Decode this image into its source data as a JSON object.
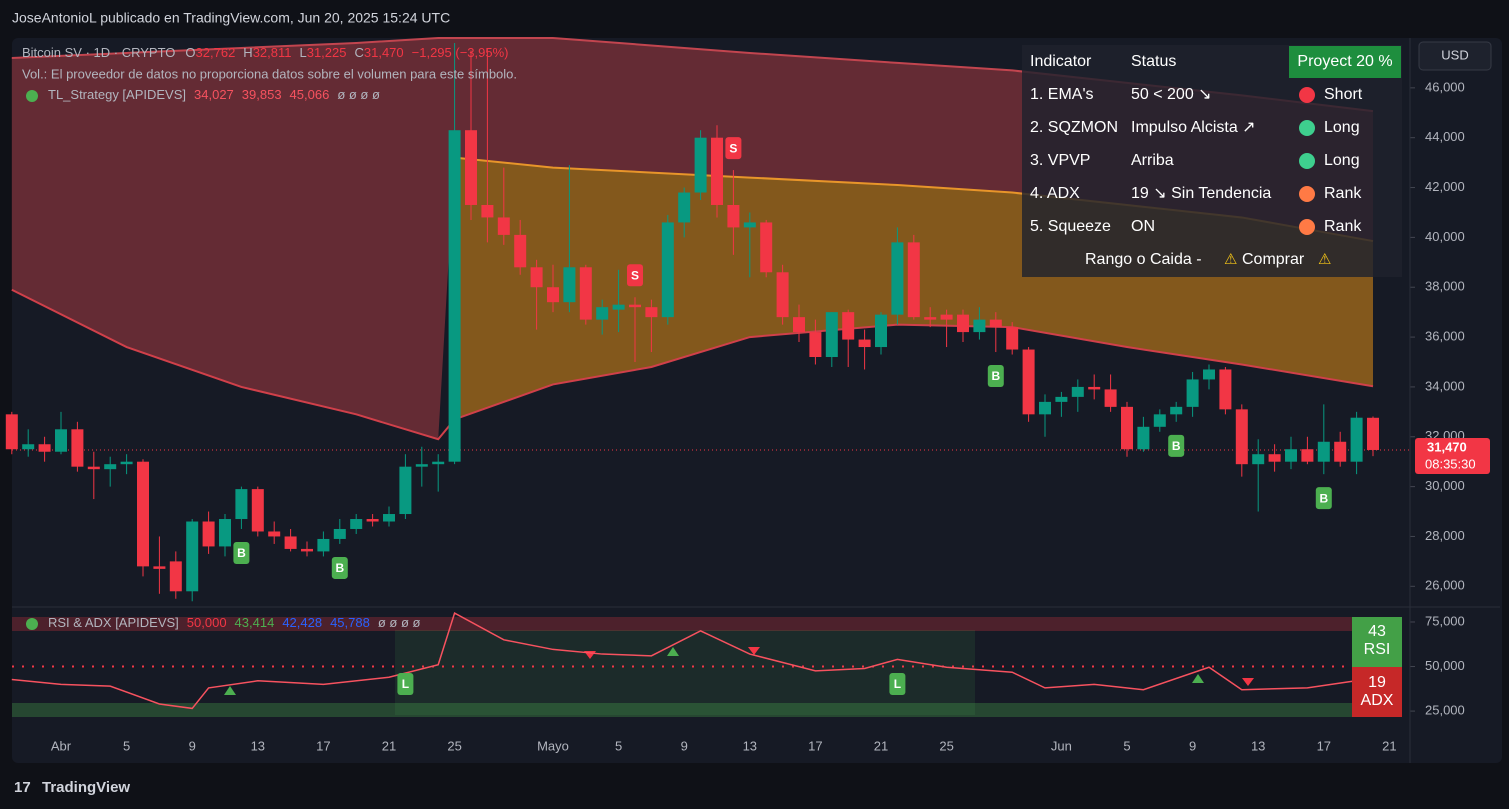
{
  "header": {
    "text": "JoseAntonioL publicado en TradingView.com, Jun 20, 2025 15:24 UTC"
  },
  "chart_data": {
    "type": "candlestick",
    "legend": {
      "symbol": "Bitcoin SV · 1D · CRYPTO",
      "ohlc": [
        [
          "O",
          "32,762"
        ],
        [
          "H",
          "32,811"
        ],
        [
          "L",
          "31,225"
        ],
        [
          "C",
          "31,470"
        ]
      ],
      "change": "−1,295 (−3,95%)",
      "volume_note": "Vol.: El proveedor de datos no proporciona datos sobre el volumen para este símbolo.",
      "indicator": "TL_Strategy [APIDEVS]",
      "indicator_values": [
        "34,027",
        "39,853",
        "45,066"
      ],
      "indicator_tail": "ø ø ø ø"
    },
    "currency": "USD",
    "x": [
      "03-29",
      "03-30",
      "03-31",
      "04-01",
      "04-02",
      "04-03",
      "04-04",
      "04-05",
      "04-06",
      "04-07",
      "04-08",
      "04-09",
      "04-10",
      "04-11",
      "04-12",
      "04-13",
      "04-14",
      "04-15",
      "04-16",
      "04-17",
      "04-18",
      "04-19",
      "04-20",
      "04-21",
      "04-22",
      "04-23",
      "04-24",
      "04-25",
      "04-26",
      "04-27",
      "04-28",
      "04-29",
      "04-30",
      "05-01",
      "05-02",
      "05-03",
      "05-04",
      "05-05",
      "05-06",
      "05-07",
      "05-08",
      "05-09",
      "05-10",
      "05-11",
      "05-12",
      "05-13",
      "05-14",
      "05-15",
      "05-16",
      "05-17",
      "05-18",
      "05-19",
      "05-20",
      "05-21",
      "05-22",
      "05-23",
      "05-24",
      "05-25",
      "05-26",
      "05-27",
      "05-28",
      "05-29",
      "05-30",
      "05-31",
      "06-01",
      "06-02",
      "06-03",
      "06-04",
      "06-05",
      "06-06",
      "06-07",
      "06-08",
      "06-09",
      "06-10",
      "06-11",
      "06-12",
      "06-13",
      "06-14",
      "06-15",
      "06-16",
      "06-17",
      "06-18",
      "06-19",
      "06-20"
    ],
    "open": [
      32900,
      31500,
      31700,
      31400,
      32300,
      30800,
      30700,
      30900,
      31000,
      26800,
      27000,
      25800,
      28600,
      27600,
      28700,
      29900,
      28200,
      28000,
      27500,
      27400,
      27900,
      28300,
      28700,
      28600,
      28900,
      30800,
      30900,
      31000,
      44300,
      41300,
      40800,
      40100,
      38800,
      38000,
      37400,
      38800,
      36700,
      37100,
      37300,
      37200,
      36800,
      40600,
      41800,
      44000,
      41300,
      40400,
      40600,
      38600,
      36800,
      36200,
      35200,
      37000,
      35900,
      35600,
      36900,
      39800,
      36800,
      36900,
      36900,
      36200,
      36700,
      36400,
      35500,
      32900,
      33400,
      33600,
      34000,
      33900,
      33200,
      31500,
      32400,
      32900,
      33200,
      34300,
      34700,
      33100,
      30900,
      31300,
      31000,
      31500,
      31000,
      31800,
      31000,
      32762
    ],
    "high": [
      33000,
      32300,
      32000,
      33000,
      32600,
      31400,
      31200,
      31300,
      31100,
      28000,
      27400,
      28700,
      29000,
      28900,
      30000,
      30000,
      28600,
      28300,
      27800,
      28200,
      28700,
      28900,
      28900,
      29200,
      31300,
      31600,
      31300,
      47800,
      47500,
      47600,
      42800,
      40700,
      39100,
      38900,
      42900,
      38900,
      37500,
      38700,
      37600,
      37500,
      40900,
      42000,
      44300,
      44500,
      42700,
      41000,
      40700,
      38900,
      37300,
      36700,
      37000,
      37100,
      36300,
      37000,
      40400,
      40100,
      37200,
      37100,
      37100,
      37200,
      37000,
      36600,
      35600,
      33700,
      33800,
      34300,
      34500,
      34500,
      33400,
      32800,
      33100,
      33400,
      34600,
      34900,
      34800,
      33300,
      31900,
      31700,
      32000,
      32000,
      33300,
      32200,
      33000,
      32811
    ],
    "low": [
      31300,
      31200,
      31000,
      31300,
      30600,
      29500,
      30000,
      30500,
      26400,
      25700,
      25500,
      25400,
      27300,
      27200,
      28300,
      28000,
      27700,
      27400,
      27200,
      27200,
      27700,
      28100,
      28400,
      28400,
      28700,
      30000,
      29800,
      30900,
      40700,
      39800,
      39700,
      38500,
      36300,
      37000,
      37000,
      36500,
      36100,
      36200,
      35000,
      35400,
      36500,
      40000,
      41500,
      40800,
      39300,
      38400,
      38400,
      36500,
      35800,
      34900,
      34800,
      34800,
      34700,
      35300,
      36500,
      36700,
      36400,
      35600,
      35800,
      35900,
      35400,
      35300,
      32600,
      32000,
      32800,
      33000,
      33500,
      33000,
      31200,
      31400,
      32200,
      32600,
      32800,
      33900,
      32900,
      30400,
      29000,
      30600,
      30700,
      30900,
      30500,
      30800,
      30500,
      31225
    ],
    "close": [
      31500,
      31700,
      31400,
      32300,
      30800,
      30700,
      30900,
      31000,
      26800,
      26700,
      25800,
      28600,
      27600,
      28700,
      29900,
      28200,
      28000,
      27500,
      27400,
      27900,
      28300,
      28700,
      28600,
      28900,
      30800,
      30900,
      31000,
      44300,
      41300,
      40800,
      40100,
      38800,
      38000,
      37400,
      38800,
      36700,
      37200,
      37300,
      37200,
      36800,
      40600,
      41800,
      44000,
      41300,
      40400,
      40600,
      38600,
      36800,
      36200,
      35200,
      37000,
      35900,
      35600,
      36900,
      39800,
      36800,
      36700,
      36700,
      36200,
      36700,
      36400,
      35500,
      32900,
      33400,
      33600,
      34000,
      33900,
      33200,
      31500,
      32400,
      32900,
      33200,
      34300,
      34700,
      33100,
      30900,
      31300,
      31000,
      31500,
      31000,
      31800,
      31000,
      32765,
      31470
    ],
    "up_color": "#089981",
    "down_color": "#f23645",
    "ylim": [
      25250,
      48000
    ],
    "yticks": [
      {
        "value": 26000,
        "label": "26,000"
      },
      {
        "value": 28000,
        "label": "28,000"
      },
      {
        "value": 30000,
        "label": "30,000"
      },
      {
        "value": 32000,
        "label": "32,000"
      },
      {
        "value": 34000,
        "label": "34,000"
      },
      {
        "value": 36000,
        "label": "36,000"
      },
      {
        "value": 38000,
        "label": "38,000"
      },
      {
        "value": 40000,
        "label": "40,000"
      },
      {
        "value": 42000,
        "label": "42,000"
      },
      {
        "value": 44000,
        "label": "44,000"
      },
      {
        "value": 46000,
        "label": "46,000"
      }
    ],
    "xticks": [
      {
        "value": "04-01",
        "label": "Abr"
      },
      {
        "value": "04-05",
        "label": "5"
      },
      {
        "value": "04-09",
        "label": "9"
      },
      {
        "value": "04-13",
        "label": "13"
      },
      {
        "value": "04-17",
        "label": "17"
      },
      {
        "value": "04-21",
        "label": "21"
      },
      {
        "value": "04-25",
        "label": "25"
      },
      {
        "value": "05-01",
        "label": "Mayo"
      },
      {
        "value": "05-05",
        "label": "5"
      },
      {
        "value": "05-09",
        "label": "9"
      },
      {
        "value": "05-13",
        "label": "13"
      },
      {
        "value": "05-17",
        "label": "17"
      },
      {
        "value": "05-21",
        "label": "21"
      },
      {
        "value": "05-25",
        "label": "25"
      },
      {
        "value": "06-01",
        "label": "Jun"
      },
      {
        "value": "06-05",
        "label": "5"
      },
      {
        "value": "06-09",
        "label": "9"
      },
      {
        "value": "06-13",
        "label": "13"
      },
      {
        "value": "06-17",
        "label": "17"
      },
      {
        "value": "06-21",
        "label": "21"
      }
    ],
    "price_tag": {
      "label": "31,470",
      "timer": "08:35:30"
    },
    "bands": {
      "x": [
        "03-29",
        "04-05",
        "04-12",
        "04-19",
        "04-24",
        "04-25",
        "05-01",
        "05-07",
        "05-13",
        "05-22",
        "05-29",
        "06-05",
        "06-12",
        "06-20"
      ],
      "upper": [
        47200,
        47400,
        47600,
        47800,
        48000,
        48000,
        48000,
        47700,
        47400,
        47000,
        46700,
        46200,
        45700,
        45066
      ],
      "middle": [
        null,
        null,
        null,
        null,
        null,
        43200,
        42800,
        42600,
        42400,
        42100,
        41800,
        41300,
        40800,
        39853
      ],
      "lower": [
        37900,
        35600,
        34000,
        32900,
        31900,
        32700,
        34100,
        34800,
        36000,
        36500,
        36400,
        35600,
        34900,
        34027
      ]
    },
    "signals": [
      {
        "x": "04-12",
        "label": "B"
      },
      {
        "x": "04-18",
        "label": "B"
      },
      {
        "x": "05-06",
        "label": "S"
      },
      {
        "x": "05-12",
        "label": "S"
      },
      {
        "x": "05-28",
        "label": "B"
      },
      {
        "x": "06-08",
        "label": "B"
      },
      {
        "x": "06-17",
        "label": "B"
      }
    ],
    "rsi": {
      "title": "RSI & ADX [APIDEVS]",
      "legend_values": [
        {
          "label": "50,000",
          "color": "#f23645"
        },
        {
          "label": "43,414",
          "color": "#4caf50"
        },
        {
          "label": "42,428",
          "color": "#2962ff"
        },
        {
          "label": "45,788",
          "color": "#2962ff"
        }
      ],
      "legend_tail": "ø ø ø ø",
      "x": [
        "03-29",
        "04-01",
        "04-04",
        "04-07",
        "04-09",
        "04-10",
        "04-13",
        "04-17",
        "04-21",
        "04-24",
        "04-25",
        "04-28",
        "05-01",
        "05-04",
        "05-07",
        "05-10",
        "05-13",
        "05-17",
        "05-20",
        "05-22",
        "05-25",
        "05-29",
        "05-31",
        "06-03",
        "06-06",
        "06-10",
        "06-12",
        "06-16",
        "06-20"
      ],
      "values": [
        42.7,
        40,
        39,
        29,
        26.5,
        38,
        42,
        40,
        44,
        51,
        80,
        65,
        59.6,
        57,
        56,
        70,
        57,
        47.6,
        48.9,
        54,
        49.6,
        46.8,
        38,
        40,
        37,
        49.6,
        37,
        38,
        43.4
      ],
      "color": "#f7525f",
      "ylim": [
        20,
        80.6
      ],
      "yticks": [
        {
          "value": 25,
          "label": "25,000"
        },
        {
          "value": 50,
          "label": "50,000"
        },
        {
          "value": 75,
          "label": "75,000"
        }
      ],
      "signals": [
        {
          "x": "04-22",
          "label": "L"
        },
        {
          "x": "05-22",
          "label": "L"
        }
      ],
      "rsi_badge": {
        "value": "43",
        "label": "RSI"
      },
      "adx_badge": {
        "value": "19",
        "label": "ADX"
      }
    }
  },
  "overlay_table": {
    "headers": [
      "Indicator",
      "Status"
    ],
    "badge": "Proyect 20 %",
    "rows": [
      {
        "indicator": "1. EMA's",
        "status": "50 < 200 ↘",
        "signal": "Short",
        "color": "#f23645"
      },
      {
        "indicator": "2. SQZMON",
        "status": "Impulso Alcista ↗",
        "signal": "Long",
        "color": "#3ecf8e"
      },
      {
        "indicator": "3. VPVP",
        "status": "Arriba",
        "signal": "Long",
        "color": "#3ecf8e"
      },
      {
        "indicator": "4. ADX",
        "status": "19 ↘ Sin Tendencia",
        "signal": "Rank",
        "color": "#ff7a45"
      },
      {
        "indicator": "5. Squeeze",
        "status": "ON",
        "signal": "Rank",
        "color": "#ff7a45"
      }
    ],
    "footer": "Rango o Caida -",
    "footer_action": "Comprar"
  },
  "footer": {
    "brand": "TradingView"
  }
}
